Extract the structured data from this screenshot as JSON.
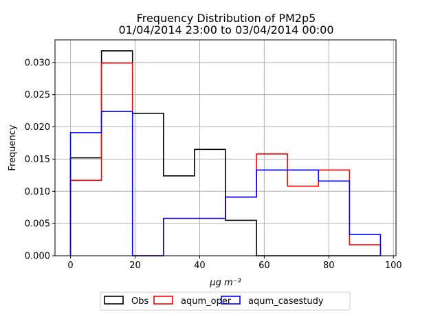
{
  "chart_data": {
    "type": "histogram-step",
    "title": "Frequency Distribution of PM2p5",
    "subtitle": "01/04/2014 23:00 to 03/04/2014 00:00",
    "xlabel": "μg m⁻³",
    "ylabel": "Frequency",
    "xlim": [
      -4.8,
      100.8
    ],
    "ylim": [
      0,
      0.0335
    ],
    "xticks": [
      0,
      20,
      40,
      60,
      80,
      100
    ],
    "xtick_labels": [
      "0",
      "20",
      "40",
      "60",
      "80",
      "100"
    ],
    "yticks": [
      0,
      0.005,
      0.01,
      0.015,
      0.02,
      0.025,
      0.03
    ],
    "ytick_labels": [
      "0.000",
      "0.005",
      "0.010",
      "0.015",
      "0.020",
      "0.025",
      "0.030"
    ],
    "grid": true,
    "legend_position": "below the plot, centered",
    "bin_edges": [
      0,
      9.6,
      19.2,
      28.8,
      38.4,
      48.0,
      57.6,
      67.2,
      76.8,
      86.4,
      96.0
    ],
    "series": [
      {
        "name": "Obs",
        "color": "#000000",
        "values": [
          0.0152,
          0.0318,
          0.0221,
          0.0124,
          0.0165,
          0.0055,
          0.0,
          0.0,
          0.0,
          0.0
        ]
      },
      {
        "name": "aqum_oper",
        "color": "#ff0000",
        "values": [
          0.0117,
          0.0299,
          0.0,
          0.0058,
          0.0058,
          0.0091,
          0.0158,
          0.0108,
          0.0133,
          0.0017
        ]
      },
      {
        "name": "aqum_casestudy",
        "color": "#0000ff",
        "values": [
          0.0191,
          0.0224,
          0.0,
          0.0058,
          0.0058,
          0.0091,
          0.0133,
          0.0133,
          0.0116,
          0.0033
        ]
      }
    ]
  }
}
